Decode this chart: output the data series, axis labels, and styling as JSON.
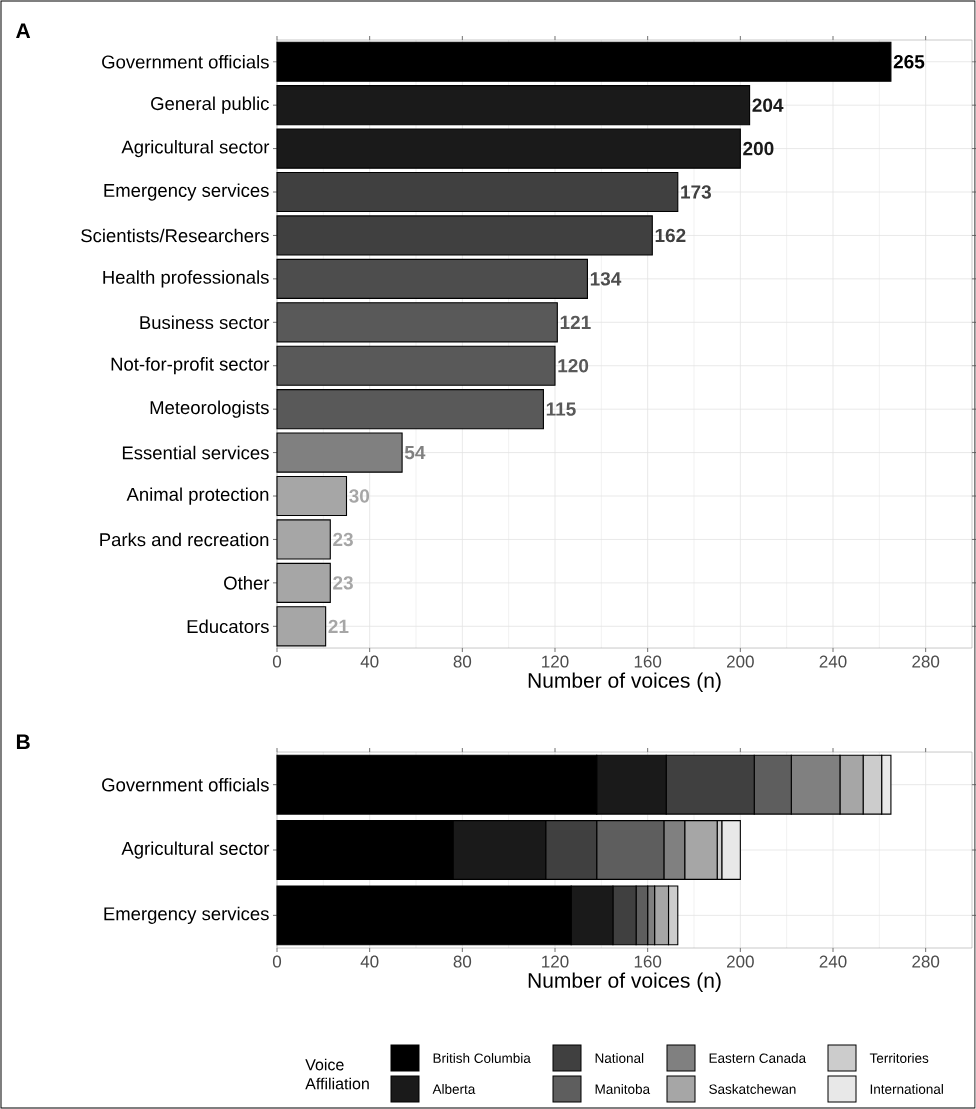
{
  "chart_data": [
    {
      "type": "bar",
      "title": "A",
      "orientation": "horizontal",
      "xlabel": "Number of voices (n)",
      "categories": [
        "Government officials",
        "General public",
        "Agricultural sector",
        "Emergency services",
        "Scientists/Researchers",
        "Health professionals",
        "Business sector",
        "Not-for-profit sector",
        "Meteorologists",
        "Essential services",
        "Animal protection",
        "Parks and recreation",
        "Other",
        "Educators"
      ],
      "values": [
        265,
        204,
        200,
        173,
        162,
        134,
        121,
        120,
        115,
        54,
        30,
        23,
        23,
        21
      ],
      "colors": [
        "#000000",
        "#1a1a1a",
        "#1a1a1a",
        "#404040",
        "#404040",
        "#4d4d4d",
        "#595959",
        "#595959",
        "#595959",
        "#808080",
        "#a6a6a6",
        "#a6a6a6",
        "#a6a6a6",
        "#a6a6a6"
      ],
      "data_labels": true,
      "xlim": [
        0,
        300
      ],
      "xticks": [
        0,
        40,
        80,
        120,
        160,
        200,
        240,
        280
      ],
      "grid": true
    },
    {
      "type": "bar",
      "title": "B",
      "orientation": "horizontal",
      "stacked": true,
      "xlabel": "Number of voices (n)",
      "categories": [
        "Government officials",
        "Agricultural sector",
        "Emergency services"
      ],
      "series": [
        {
          "name": "British Columbia",
          "color": "#000000",
          "values": [
            138,
            76,
            127
          ]
        },
        {
          "name": "Alberta",
          "color": "#1a1a1a",
          "values": [
            30,
            40,
            18
          ]
        },
        {
          "name": "National",
          "color": "#404040",
          "values": [
            38,
            22,
            10
          ]
        },
        {
          "name": "Manitoba",
          "color": "#5e5e5e",
          "values": [
            16,
            29,
            5
          ]
        },
        {
          "name": "Eastern Canada",
          "color": "#808080",
          "values": [
            21,
            9,
            3
          ]
        },
        {
          "name": "Saskatchewan",
          "color": "#a6a6a6",
          "values": [
            10,
            14,
            6
          ]
        },
        {
          "name": "Territories",
          "color": "#cccccc",
          "values": [
            8,
            2,
            4
          ]
        },
        {
          "name": "International",
          "color": "#e8e8e8",
          "values": [
            4,
            8,
            null
          ]
        }
      ],
      "legend_title": "Voice Affiliation",
      "legend": "bottom",
      "xlim": [
        0,
        300
      ],
      "xticks": [
        0,
        40,
        80,
        120,
        160,
        200,
        240,
        280
      ],
      "grid": true
    }
  ]
}
